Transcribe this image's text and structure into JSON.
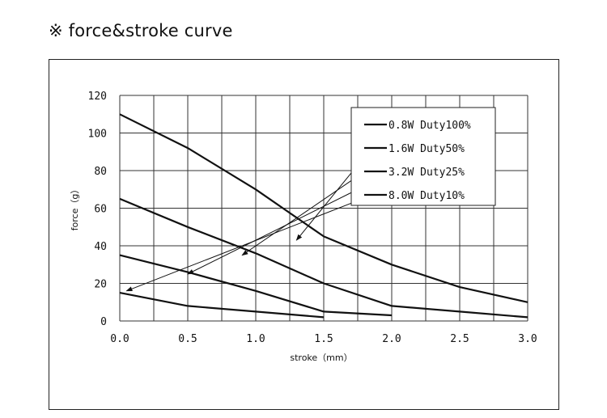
{
  "heading": "※ force&stroke curve",
  "chart_data": {
    "type": "line",
    "title": "",
    "xlabel": "stroke（mm）",
    "ylabel": "force（g）",
    "xlim": [
      0,
      3
    ],
    "ylim": [
      0,
      120
    ],
    "x_ticks": [
      "0.0",
      "0.5",
      "1.0",
      "1.5",
      "2.0",
      "2.5",
      "3.0"
    ],
    "y_ticks": [
      "0",
      "20",
      "40",
      "60",
      "80",
      "100",
      "120"
    ],
    "grid": true,
    "legend_position": "top-right",
    "series": [
      {
        "name": "0.8W Duty100%",
        "points": [
          [
            0,
            110
          ],
          [
            0.5,
            92
          ],
          [
            1.0,
            70
          ],
          [
            1.5,
            45
          ],
          [
            2.0,
            30
          ],
          [
            2.5,
            18
          ],
          [
            3.0,
            10
          ]
        ]
      },
      {
        "name": "1.6W Duty50%",
        "points": [
          [
            0,
            65
          ],
          [
            0.5,
            50
          ],
          [
            1.0,
            36
          ],
          [
            1.5,
            20
          ],
          [
            2.0,
            8
          ],
          [
            2.5,
            5
          ],
          [
            3.0,
            2
          ]
        ]
      },
      {
        "name": "3.2W Duty25%",
        "points": [
          [
            0,
            35
          ],
          [
            0.5,
            26
          ],
          [
            1.0,
            16
          ],
          [
            1.5,
            5
          ],
          [
            2.0,
            3
          ]
        ]
      },
      {
        "name": "8.0W Duty10%",
        "points": [
          [
            0,
            15
          ],
          [
            0.5,
            8
          ],
          [
            1.0,
            5
          ],
          [
            1.5,
            2
          ]
        ]
      }
    ],
    "annotations": [
      {
        "from": [
          1.75,
          83
        ],
        "to": [
          1.3,
          43
        ]
      },
      {
        "from": [
          1.75,
          77
        ],
        "to": [
          0.9,
          35
        ]
      },
      {
        "from": [
          1.75,
          70
        ],
        "to": [
          0.5,
          25
        ]
      },
      {
        "from": [
          1.75,
          64
        ],
        "to": [
          0.05,
          16
        ]
      }
    ]
  }
}
